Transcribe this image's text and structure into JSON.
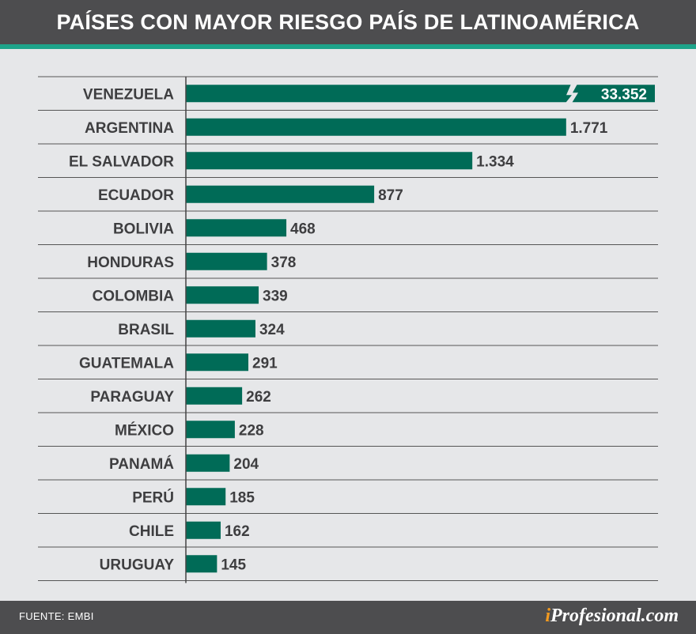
{
  "header": {
    "title": "PAÍSES CON MAYOR RIESGO PAÍS DE LATINOAMÉRICA"
  },
  "footer": {
    "source": "FUENTE: EMBI",
    "brand_prefix": "i",
    "brand_rest": "Profesional.com"
  },
  "colors": {
    "bar": "#006b57",
    "bar_label_highlight": "#ffffff",
    "header_bg": "#4d4d4f",
    "accent": "#1ea48a",
    "background": "#e6e7e9",
    "text": "#3e3e40"
  },
  "chart_data": {
    "type": "bar",
    "orientation": "horizontal",
    "title": "PAÍSES CON MAYOR RIESGO PAÍS DE LATINOAMÉRICA",
    "xlabel": "",
    "ylabel": "",
    "axis_break": true,
    "xlim": [
      0,
      2000
    ],
    "categories": [
      "VENEZUELA",
      "ARGENTINA",
      "EL SALVADOR",
      "ECUADOR",
      "BOLIVIA",
      "HONDURAS",
      "COLOMBIA",
      "BRASIL",
      "GUATEMALA",
      "PARAGUAY",
      "MÉXICO",
      "PANAMÁ",
      "PERÚ",
      "CHILE",
      "URUGUAY"
    ],
    "values": [
      33352,
      1771,
      1334,
      877,
      468,
      378,
      339,
      324,
      291,
      262,
      228,
      204,
      185,
      162,
      145
    ],
    "labels": [
      "33.352",
      "1.771",
      "1.334",
      "877",
      "468",
      "378",
      "339",
      "324",
      "291",
      "262",
      "228",
      "204",
      "185",
      "162",
      "145"
    ],
    "grid": true,
    "legend": "none"
  }
}
